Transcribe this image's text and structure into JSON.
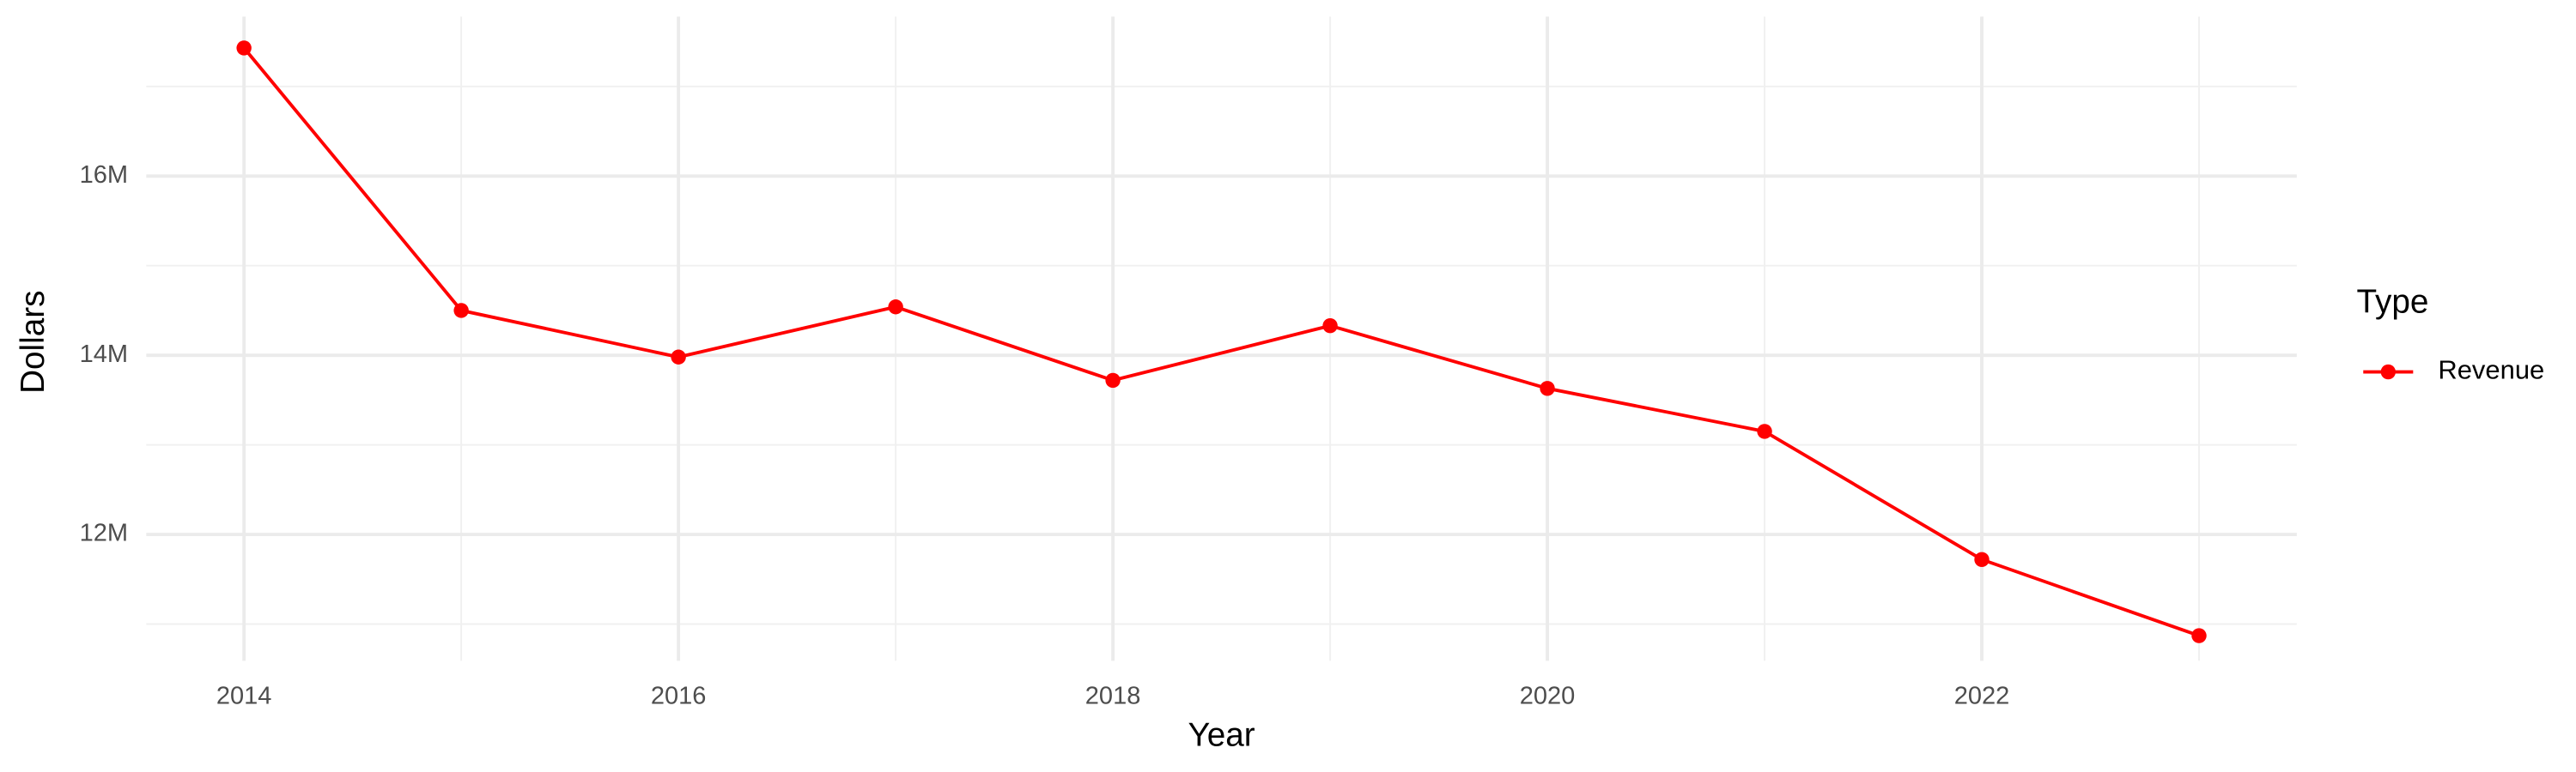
{
  "chart_data": {
    "type": "line",
    "x_label": "Year",
    "y_label": "Dollars",
    "x": [
      2014,
      2015,
      2016,
      2017,
      2018,
      2019,
      2020,
      2021,
      2022,
      2023
    ],
    "series": [
      {
        "name": "Revenue",
        "color": "#ff0000",
        "values": [
          17430000,
          14500000,
          13980000,
          14540000,
          13720000,
          14330000,
          13630000,
          13150000,
          11720000,
          10870000
        ]
      }
    ],
    "xlim": [
      2013.55,
      2023.45
    ],
    "xticks": [
      2014,
      2016,
      2018,
      2020,
      2022
    ],
    "ylim": [
      10590000,
      17780000
    ],
    "yticks": [
      {
        "value": 12000000,
        "label": "12M"
      },
      {
        "value": 14000000,
        "label": "14M"
      },
      {
        "value": 16000000,
        "label": "16M"
      }
    ],
    "legend_title": "Type",
    "legend_position": "right",
    "grid": true
  }
}
